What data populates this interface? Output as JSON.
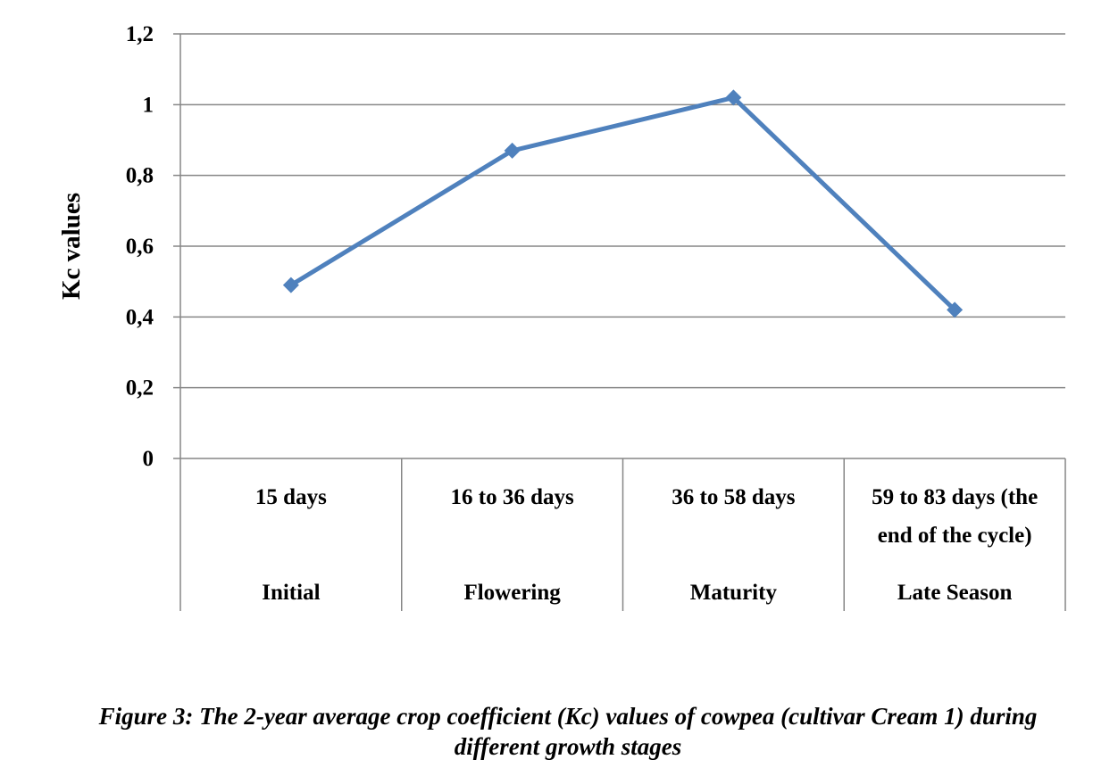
{
  "chart_data": {
    "type": "line",
    "ylabel": "Kc values",
    "ylim": [
      0,
      1.2
    ],
    "yticks": [
      "0",
      "0,2",
      "0,4",
      "0,6",
      "0,8",
      "1",
      "1,2"
    ],
    "categories": [
      {
        "period": [
          "15 days"
        ],
        "stage": "Initial"
      },
      {
        "period": [
          "16 to 36 days"
        ],
        "stage": "Flowering"
      },
      {
        "period": [
          "36 to 58 days"
        ],
        "stage": "Maturity"
      },
      {
        "period": [
          "59 to 83 days (the",
          "end of the cycle)"
        ],
        "stage": "Late Season"
      }
    ],
    "series": [
      {
        "values": [
          0.49,
          0.87,
          1.02,
          0.42
        ]
      }
    ],
    "colors": {
      "line": "#4f81bd",
      "grid": "#868686"
    },
    "grid": true,
    "marker": "diamond",
    "legend": "none"
  },
  "caption": {
    "line1": "Figure 3: The 2-year average crop coefficient (Kc) values of cowpea (cultivar Cream 1) during",
    "line2": "different growth stages"
  }
}
